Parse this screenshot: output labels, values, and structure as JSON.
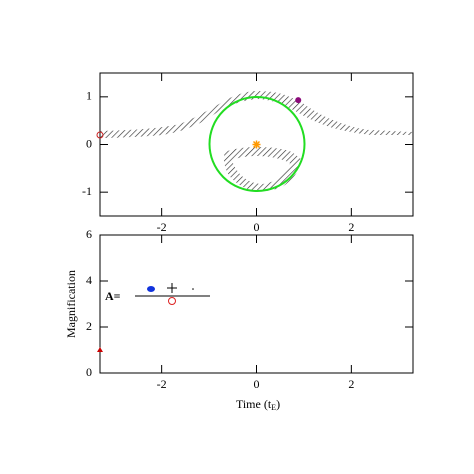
{
  "chart_data": [
    {
      "type": "scatter",
      "xlim": [
        -3.3,
        3.3
      ],
      "xticks": [
        -2,
        0,
        2
      ],
      "ylim": [
        -1.5,
        1.5
      ],
      "yticks": [
        -1,
        0,
        1
      ],
      "series": [
        {
          "color": "#8b0a7a",
          "marker": "dot",
          "x": [
            0.88
          ],
          "values": [
            0.93
          ]
        },
        {
          "color": "#ff9900",
          "marker": "star",
          "x": [
            0
          ],
          "values": [
            0
          ]
        },
        {
          "color": "#cc2222",
          "marker": "circle",
          "x": [
            -3.3
          ],
          "values": [
            0.2
          ]
        }
      ]
    },
    {
      "type": "scatter",
      "xlabel": [
        "Time (t",
        "E",
        ")"
      ],
      "ylabel": "Magnification",
      "annotation": "A=",
      "xlim": [
        -3.3,
        3.3
      ],
      "xticks": [
        -2,
        0,
        2
      ],
      "ylim": [
        0,
        6
      ],
      "yticks": [
        0,
        2,
        4,
        6
      ],
      "series": [
        {
          "color": "#cc0000",
          "marker": "triangle",
          "x": [
            -3.3
          ],
          "values": [
            1.0
          ]
        }
      ]
    }
  ]
}
